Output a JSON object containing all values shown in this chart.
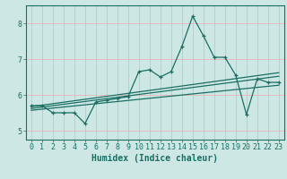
{
  "xlabel": "Humidex (Indice chaleur)",
  "bg_color": "#cde8e4",
  "line_color": "#1a6e64",
  "grid_color": "#e8b4b8",
  "xlim": [
    -0.5,
    23.5
  ],
  "ylim": [
    4.75,
    8.5
  ],
  "yticks": [
    5,
    6,
    7,
    8
  ],
  "xticks": [
    0,
    1,
    2,
    3,
    4,
    5,
    6,
    7,
    8,
    9,
    10,
    11,
    12,
    13,
    14,
    15,
    16,
    17,
    18,
    19,
    20,
    21,
    22,
    23
  ],
  "data_x": [
    0,
    1,
    2,
    3,
    4,
    5,
    6,
    7,
    8,
    9,
    10,
    11,
    12,
    13,
    14,
    15,
    16,
    17,
    18,
    19,
    20,
    21,
    22,
    23
  ],
  "data_y": [
    5.7,
    5.7,
    5.5,
    5.5,
    5.5,
    5.2,
    5.8,
    5.85,
    5.9,
    5.95,
    6.65,
    6.7,
    6.5,
    6.65,
    7.35,
    8.2,
    7.65,
    7.05,
    7.05,
    6.55,
    5.45,
    6.45,
    6.35,
    6.35
  ],
  "trend_x": [
    0,
    23
  ],
  "trend_line1_y": [
    5.62,
    6.52
  ],
  "trend_line2_y": [
    5.67,
    6.62
  ],
  "trend_line3_y": [
    5.57,
    6.27
  ],
  "axis_fontsize": 7,
  "tick_fontsize": 6
}
